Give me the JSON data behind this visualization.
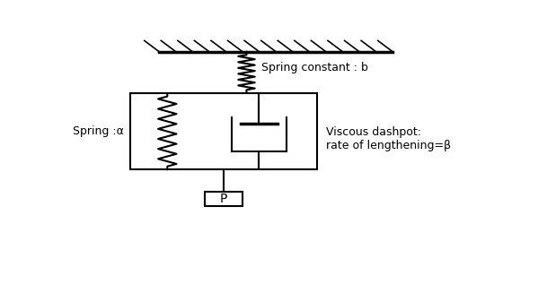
{
  "bg_color": "#ffffff",
  "line_color": "#000000",
  "label_spring_b": "Spring constant : b",
  "label_spring_a": "Spring :α",
  "label_dashpot": "Viscous dashpot:\nrate of lengthening=β",
  "label_load": "P",
  "figsize": [
    5.99,
    3.17
  ],
  "dpi": 100,
  "xlim": [
    0,
    10
  ],
  "ylim": [
    0,
    10
  ]
}
